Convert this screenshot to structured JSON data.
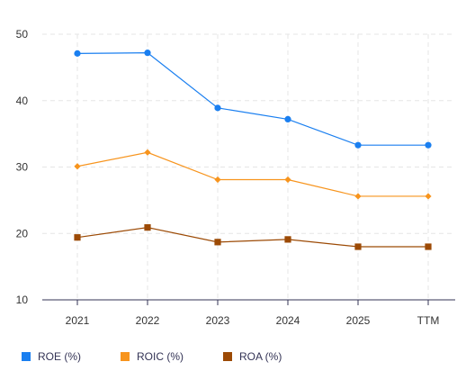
{
  "chart_data": {
    "type": "line",
    "categories": [
      "2021",
      "2022",
      "2023",
      "2024",
      "2025",
      "TTM"
    ],
    "ylim": [
      10,
      50
    ],
    "yticks": [
      10,
      20,
      30,
      40,
      50
    ],
    "grid": true,
    "legend_position": "bottom-left",
    "series": [
      {
        "name": "ROE (%)",
        "color": "#1a7ff0",
        "marker": "circle",
        "values": [
          47.1,
          47.2,
          38.9,
          37.2,
          33.3,
          33.3
        ]
      },
      {
        "name": "ROIC (%)",
        "color": "#f7941d",
        "marker": "diamond",
        "values": [
          30.1,
          32.2,
          28.1,
          28.1,
          25.6,
          25.6
        ]
      },
      {
        "name": "ROA (%)",
        "color": "#9c4a05",
        "marker": "square",
        "values": [
          19.4,
          20.9,
          18.7,
          19.1,
          18.0,
          18.0
        ]
      }
    ]
  }
}
